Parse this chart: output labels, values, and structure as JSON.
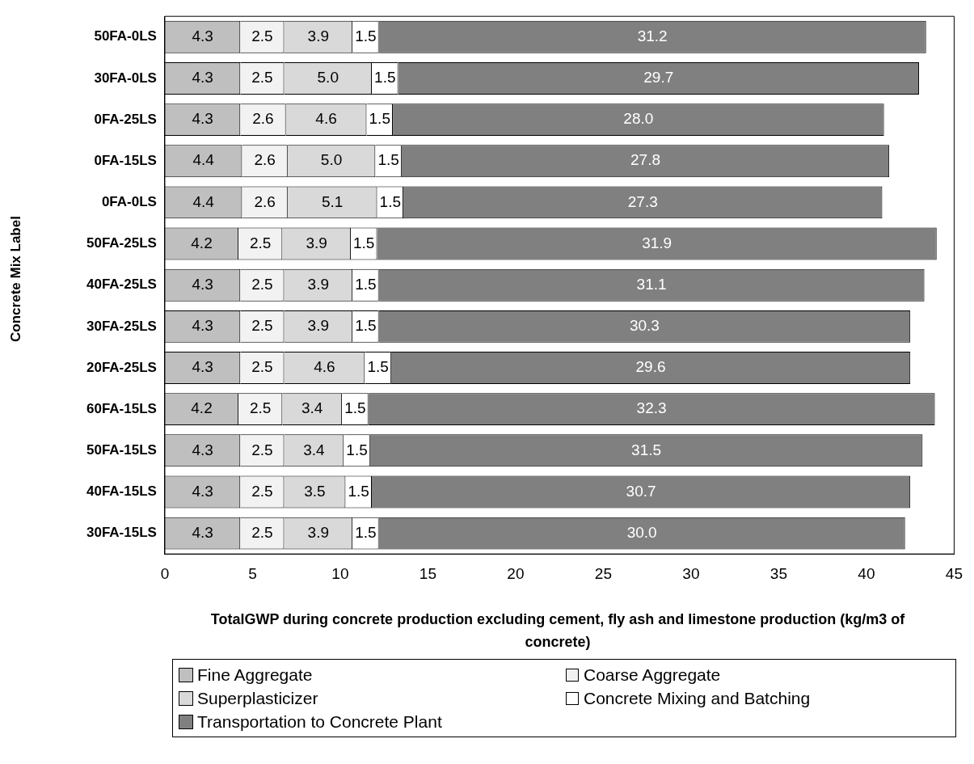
{
  "chart_data": {
    "type": "bar",
    "orientation": "horizontal",
    "stacked": true,
    "xlabel": "TotalGWP during concrete production excluding cement, fly ash and limestone production (kg/m3 of concrete)",
    "ylabel": "Concrete Mix Label",
    "categories": [
      "50FA-0LS",
      "30FA-0LS",
      "0FA-25LS",
      "0FA-15LS",
      "0FA-0LS",
      "50FA-25LS",
      "40FA-25LS",
      "30FA-25LS",
      "20FA-25LS",
      "60FA-15LS",
      "50FA-15LS",
      "40FA-15LS",
      "30FA-15LS"
    ],
    "xlim": [
      0,
      45
    ],
    "xticks": [
      0,
      5,
      10,
      15,
      20,
      25,
      30,
      35,
      40,
      45
    ],
    "legend": "bottom",
    "series": [
      {
        "name": "Fine Aggregate",
        "color": "#bfbfbf",
        "values": [
          4.3,
          4.3,
          4.3,
          4.4,
          4.4,
          4.2,
          4.3,
          4.3,
          4.3,
          4.2,
          4.3,
          4.3,
          4.3
        ],
        "value_labels": [
          "4.3",
          "4.3",
          "4.3",
          "4.4",
          "4.4",
          "4.2",
          "4.3",
          "4.3",
          "4.3",
          "4.2",
          "4.3",
          "4.3",
          "4.3"
        ]
      },
      {
        "name": "Coarse Aggregate",
        "color": "#f2f2f2",
        "values": [
          2.5,
          2.5,
          2.6,
          2.6,
          2.6,
          2.5,
          2.5,
          2.5,
          2.5,
          2.5,
          2.5,
          2.5,
          2.5
        ],
        "value_labels": [
          "2.5",
          "2.5",
          "2.6",
          "2.6",
          "2.6",
          "2.5",
          "2.5",
          "2.5",
          "2.5",
          "2.5",
          "2.5",
          "2.5",
          "2.5"
        ]
      },
      {
        "name": "Superplasticizer",
        "color": "#d9d9d9",
        "values": [
          3.9,
          5.0,
          4.6,
          5.0,
          5.1,
          3.9,
          3.9,
          3.9,
          4.6,
          3.4,
          3.4,
          3.5,
          3.9
        ],
        "value_labels": [
          "3.9",
          "5.0",
          "4.6",
          "5.0",
          "5.1",
          "3.9",
          "3.9",
          "3.9",
          "4.6",
          "3.4",
          "3.4",
          "3.5",
          "3.9"
        ]
      },
      {
        "name": "Concrete Mixing and Batching",
        "color": "#ffffff",
        "values": [
          1.5,
          1.5,
          1.5,
          1.5,
          1.5,
          1.5,
          1.5,
          1.5,
          1.5,
          1.5,
          1.5,
          1.5,
          1.5
        ],
        "value_labels": [
          "1.5",
          "1.5",
          "1.5",
          "1.5",
          "1.5",
          "1.5",
          "1.5",
          "1.5",
          "1.5",
          "1.5",
          "1.5",
          "1.5",
          "1.5"
        ]
      },
      {
        "name": "Transportation to Concrete Plant",
        "color": "#808080",
        "values": [
          31.2,
          29.7,
          28.0,
          27.8,
          27.3,
          31.9,
          31.1,
          30.3,
          29.6,
          32.3,
          31.5,
          30.7,
          30.0
        ],
        "value_labels": [
          "31.2",
          "29.7",
          "28.0",
          "27.8",
          "27.3",
          "31.9",
          "31.1",
          "30.3",
          "29.6",
          "32.3",
          "31.5",
          "30.7",
          "30.0"
        ]
      }
    ]
  }
}
